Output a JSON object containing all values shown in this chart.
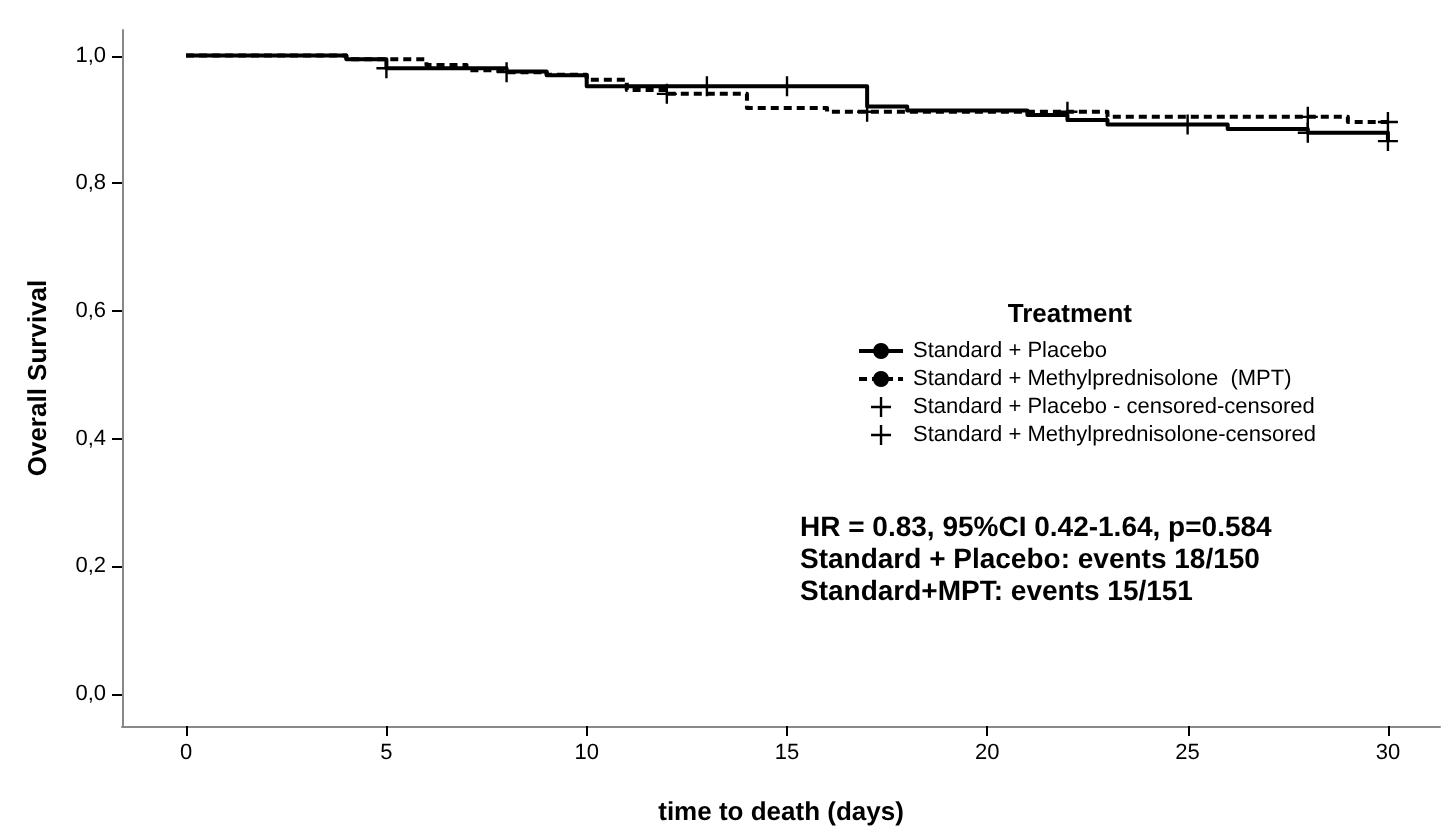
{
  "chart_data": {
    "type": "step",
    "xlabel": "time to death (days)",
    "ylabel": "Overall Survival",
    "legend_title": "Treatment",
    "xlim": [
      -1.6,
      31.3
    ],
    "xticks": [
      0,
      5,
      10,
      15,
      20,
      25,
      30
    ],
    "ylim": [
      -0.05,
      1.04
    ],
    "yticks": [
      {
        "value": 0,
        "label": "0,0"
      },
      {
        "value": 0.2,
        "label": "0,2"
      },
      {
        "value": 0.4,
        "label": "0,4"
      },
      {
        "value": 0.6,
        "label": "0,6"
      },
      {
        "value": 0.8,
        "label": "0,8"
      },
      {
        "value": 1,
        "label": "1,0"
      }
    ],
    "grid": false,
    "legend": "right",
    "annotations": [
      "HR = 0.83, 95%CI 0.42-1.64, p=0.584",
      "Standard + Placebo: events 18/150",
      "Standard+MPT: events 15/151"
    ],
    "series": [
      {
        "name": "Standard + Placebo",
        "type": "step",
        "line_style": "solid",
        "color": "#000000",
        "x": [
          0,
          4,
          5,
          8,
          9,
          10,
          17,
          18,
          21,
          22,
          23,
          26,
          28,
          30
        ],
        "values": [
          1,
          0.994,
          0.98,
          0.975,
          0.969,
          0.952,
          0.92,
          0.914,
          0.907,
          0.899,
          0.892,
          0.885,
          0.879,
          0.866
        ]
      },
      {
        "name": "Standard + Methylprednisolone  (MPT)",
        "type": "step",
        "line_style": "dashed",
        "color": "#000000",
        "x": [
          0,
          4,
          6,
          7,
          8,
          9,
          10,
          11,
          12,
          14,
          16,
          23,
          29,
          30
        ],
        "values": [
          1,
          0.994,
          0.985,
          0.977,
          0.974,
          0.97,
          0.962,
          0.946,
          0.94,
          0.918,
          0.912,
          0.904,
          0.896,
          0.896
        ]
      },
      {
        "name": "Standard + Placebo - censored-censored",
        "type": "scatter",
        "marker": "cross",
        "color": "#000000",
        "x": [
          5,
          13,
          15,
          25,
          28,
          30
        ],
        "values": [
          0.98,
          0.952,
          0.952,
          0.892,
          0.879,
          0.866
        ]
      },
      {
        "name": "Standard + Methylprednisolone-censored",
        "type": "scatter",
        "marker": "cross",
        "color": "#000000",
        "x": [
          8,
          12,
          17,
          22,
          28,
          30
        ],
        "values": [
          0.974,
          0.94,
          0.912,
          0.912,
          0.904,
          0.896
        ]
      }
    ]
  }
}
